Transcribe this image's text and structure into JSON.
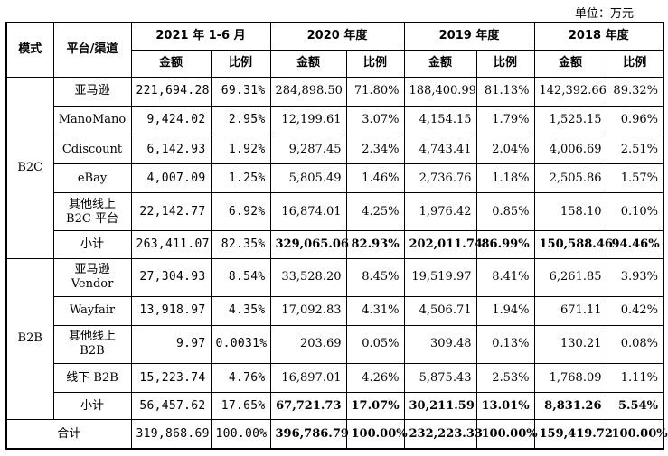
{
  "unit_label": "单位：万元",
  "headers": {
    "mode": "模式",
    "channel": "平台/渠道",
    "periods": [
      "2021 年 1-6 月",
      "2020 年度",
      "2019 年度",
      "2018 年度"
    ],
    "amount": "金额",
    "ratio": "比例"
  },
  "b2c": {
    "label": "B2C",
    "rows": [
      {
        "name": "亚马逊",
        "v": [
          "221,694.28",
          "69.31%",
          "284,898.50",
          "71.80%",
          "188,400.99",
          "81.13%",
          "142,392.66",
          "89.32%"
        ]
      },
      {
        "name": "ManoMano",
        "v": [
          "9,424.02",
          "2.95%",
          "12,199.61",
          "3.07%",
          "4,154.15",
          "1.79%",
          "1,525.15",
          "0.96%"
        ]
      },
      {
        "name": "Cdiscount",
        "v": [
          "6,142.93",
          "1.92%",
          "9,287.45",
          "2.34%",
          "4,743.41",
          "2.04%",
          "4,006.69",
          "2.51%"
        ]
      },
      {
        "name": "eBay",
        "v": [
          "4,007.09",
          "1.25%",
          "5,805.49",
          "1.46%",
          "2,736.76",
          "1.18%",
          "2,505.86",
          "1.57%"
        ]
      },
      {
        "name": "其他线上\nB2C 平台",
        "v": [
          "22,142.77",
          "6.92%",
          "16,874.01",
          "4.25%",
          "1,976.42",
          "0.85%",
          "158.10",
          "0.10%"
        ]
      }
    ],
    "subtotal": {
      "name": "小计",
      "v": [
        "263,411.07",
        "82.35%",
        "329,065.06",
        "82.93%",
        "202,011.74",
        "86.99%",
        "150,588.46",
        "94.46%"
      ]
    }
  },
  "b2b": {
    "label": "B2B",
    "rows": [
      {
        "name": "亚马逊\nVendor",
        "v": [
          "27,304.93",
          "8.54%",
          "33,528.20",
          "8.45%",
          "19,519.97",
          "8.41%",
          "6,261.85",
          "3.93%"
        ]
      },
      {
        "name": "Wayfair",
        "v": [
          "13,918.97",
          "4.35%",
          "17,092.83",
          "4.31%",
          "4,506.71",
          "1.94%",
          "671.11",
          "0.42%"
        ]
      },
      {
        "name": "其他线上\nB2B",
        "v": [
          "9.97",
          "0.0031%",
          "203.69",
          "0.05%",
          "309.48",
          "0.13%",
          "130.21",
          "0.08%"
        ]
      },
      {
        "name": "线下 B2B",
        "v": [
          "15,223.74",
          "4.76%",
          "16,897.01",
          "4.26%",
          "5,875.43",
          "2.53%",
          "1,768.09",
          "1.11%"
        ]
      }
    ],
    "subtotal": {
      "name": "小计",
      "v": [
        "56,457.62",
        "17.65%",
        "67,721.73",
        "17.07%",
        "30,211.59",
        "13.01%",
        "8,831.26",
        "5.54%"
      ]
    }
  },
  "total": {
    "name": "合计",
    "v": [
      "319,868.69",
      "100.00%",
      "396,786.79",
      "100.00%",
      "232,223.33",
      "100.00%",
      "159,419.72",
      "100.00%"
    ]
  }
}
